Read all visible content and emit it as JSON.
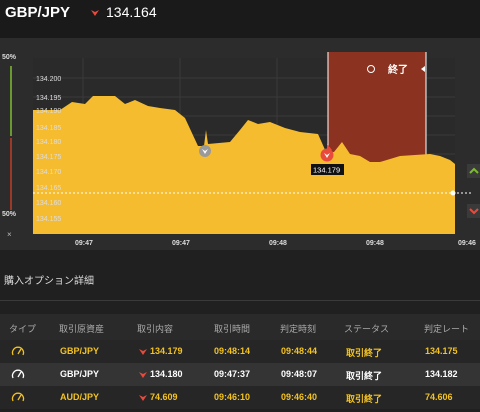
{
  "header": {
    "pair": "GBP/JPY",
    "price": "134.164",
    "trend_icon": "down-triangle-icon",
    "trend_color": "#e84b3c"
  },
  "sidebar": {
    "top_pct": "50%",
    "bottom_pct": "50%",
    "close_label": "×"
  },
  "chart": {
    "y_ticks": [
      "134.200",
      "134.195",
      "134.190",
      "134.185",
      "134.180",
      "134.175",
      "134.170",
      "134.165",
      "134.160",
      "134.155"
    ],
    "x_ticks": [
      "09:47",
      "09:47",
      "09:48",
      "09:48",
      "09:46"
    ],
    "end_label": "終了",
    "marker_label": "134.179",
    "fill_color": "#f6bc2f",
    "end_zone_color": "#8b3320"
  },
  "section": {
    "title": "購入オプション詳細"
  },
  "table": {
    "headers": [
      "タイプ",
      "取引原資産",
      "取引内容",
      "取引時間",
      "判定時刻",
      "ステータス",
      "判定レート"
    ],
    "rows": [
      {
        "asset": "GBP/JPY",
        "trade": "134.179",
        "time": "09:48:14",
        "judge": "09:48:44",
        "status": "取引終了",
        "rate": "134.175"
      },
      {
        "asset": "GBP/JPY",
        "trade": "134.180",
        "time": "09:47:37",
        "judge": "09:48:07",
        "status": "取引終了",
        "rate": "134.182"
      },
      {
        "asset": "AUD/JPY",
        "trade": "74.609",
        "time": "09:46:10",
        "judge": "09:46:40",
        "status": "取引終了",
        "rate": "74.606"
      }
    ]
  }
}
